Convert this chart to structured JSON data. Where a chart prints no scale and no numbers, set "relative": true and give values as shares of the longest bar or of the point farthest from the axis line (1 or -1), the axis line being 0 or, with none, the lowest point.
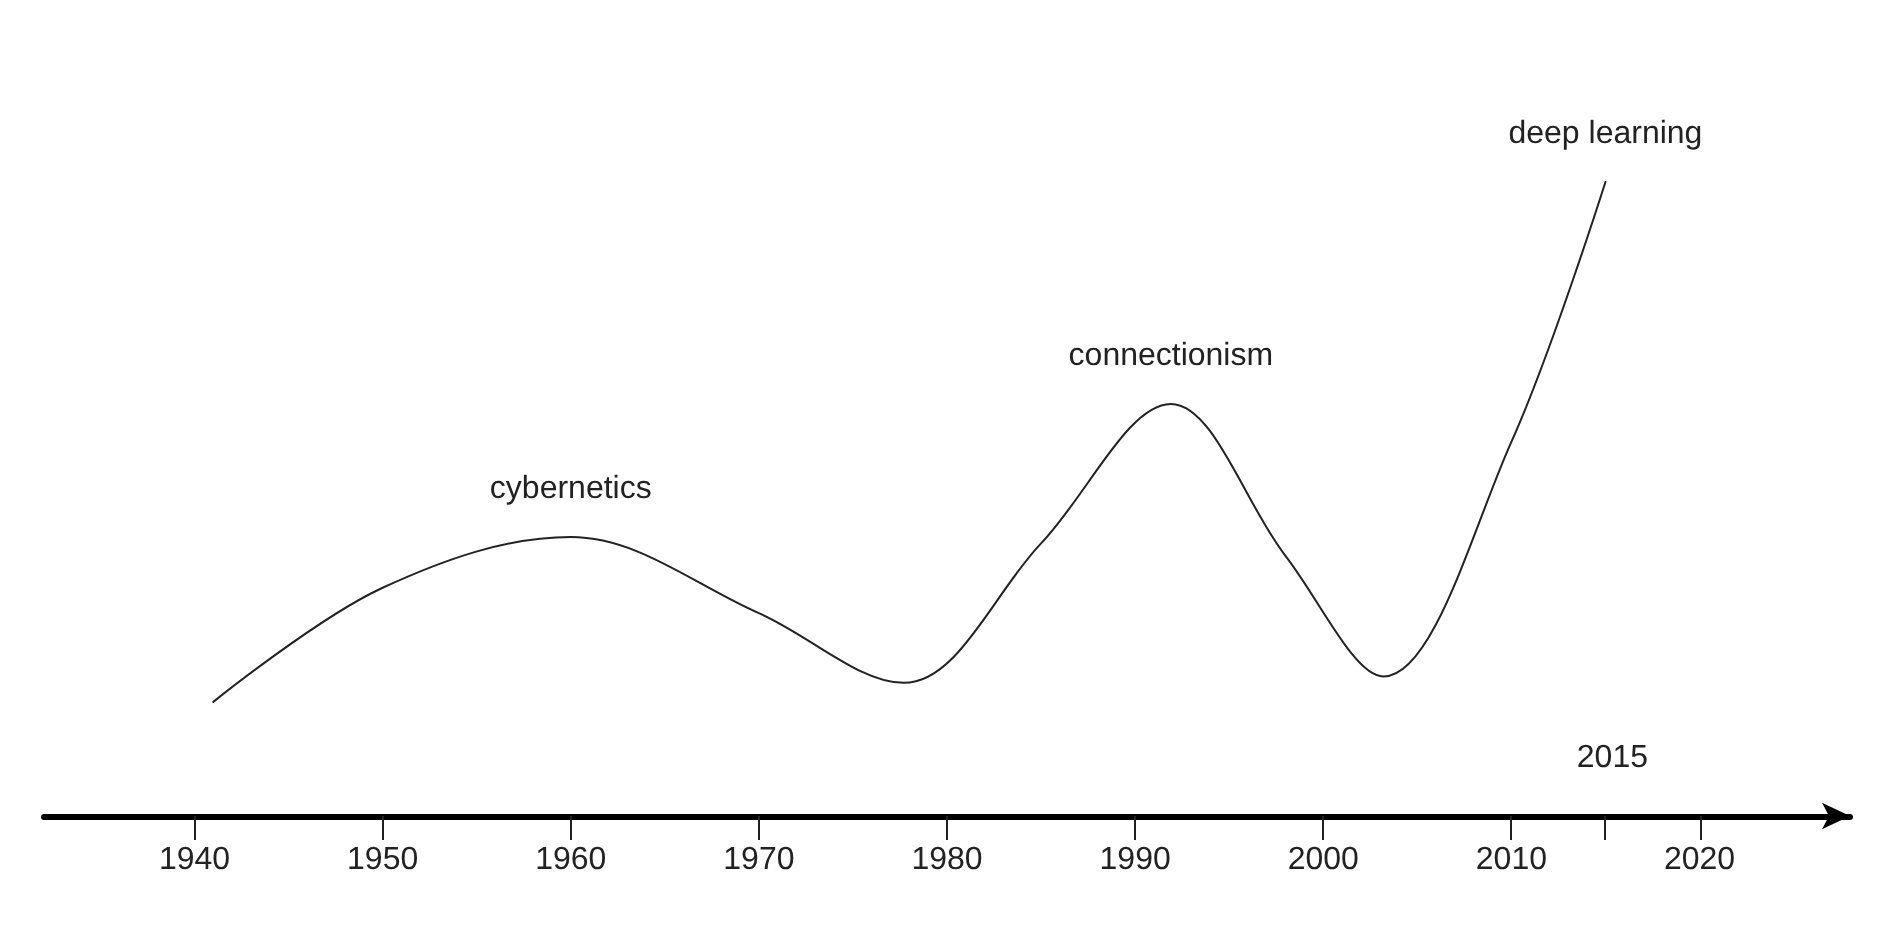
{
  "chart_data": {
    "type": "line",
    "relative": true,
    "x": [
      1941,
      1950,
      1960,
      1970,
      1977.7,
      1985,
      1991.9,
      1998,
      2003.2,
      2010,
      2015
    ],
    "series": [
      {
        "color": "#222222",
        "values": [
          0.18,
          0.36,
          0.44,
          0.32,
          0.21,
          0.43,
          0.65,
          0.41,
          0.22,
          0.59,
          1.0
        ]
      }
    ],
    "xlim": [
      1932,
      2028
    ],
    "xticks": [
      1940,
      1950,
      1960,
      1970,
      1980,
      1990,
      2000,
      2010,
      {
        "value": 2015,
        "label": null
      },
      2020
    ],
    "annotations": [
      {
        "text": "cybernetics",
        "x": 1960,
        "y": 0.44
      },
      {
        "text": "connectionism",
        "x": 1991.9,
        "y": 0.65
      },
      {
        "text": "deep learning",
        "x": 2015,
        "y": 1.0
      },
      "2015"
    ],
    "grid": false,
    "marker": "none",
    "line_style": "solid"
  }
}
